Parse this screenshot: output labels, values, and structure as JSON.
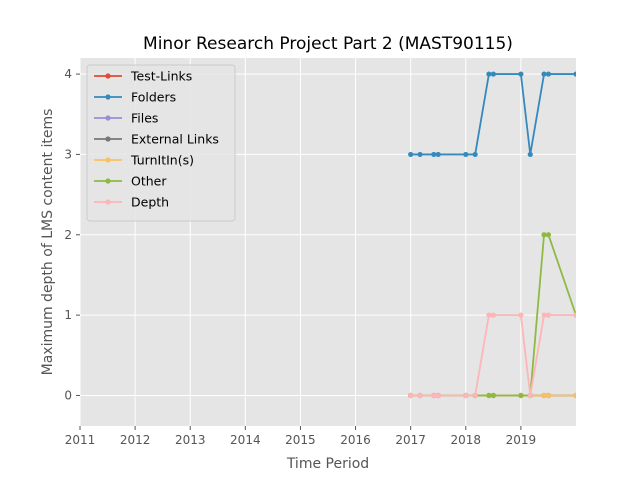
{
  "chart_data": {
    "type": "line",
    "title": "Minor Research Project Part 2 (MAST90115)",
    "xlabel": "Time Period",
    "ylabel": "Maximum depth of LMS content items",
    "xlim": [
      2011,
      2020
    ],
    "ylim": [
      -0.38,
      4.2
    ],
    "xticks": [
      "2011",
      "2012",
      "2013",
      "2014",
      "2015",
      "2016",
      "2017",
      "2018",
      "2019"
    ],
    "xtick_values": [
      2011,
      2012,
      2013,
      2014,
      2015,
      2016,
      2017,
      2018,
      2019
    ],
    "yticks": [
      "0",
      "1",
      "2",
      "3",
      "4"
    ],
    "ytick_values": [
      0,
      1,
      2,
      3,
      4
    ],
    "grid": true,
    "legend_position": "top-left",
    "x": [
      2017.0,
      2017.17,
      2017.42,
      2017.5,
      2018.0,
      2018.17,
      2018.42,
      2018.5,
      2019.0,
      2019.17,
      2019.42,
      2019.5,
      2020.0
    ],
    "series": [
      {
        "name": "Test-Links",
        "color": "#E24A33",
        "values": [
          0,
          0,
          0,
          0,
          0,
          0,
          0,
          0,
          0,
          0,
          0,
          0,
          0
        ]
      },
      {
        "name": "Folders",
        "color": "#348ABD",
        "values": [
          3,
          3,
          3,
          3,
          3,
          3,
          4,
          4,
          4,
          3,
          4,
          4,
          4
        ]
      },
      {
        "name": "Files",
        "color": "#988ED5",
        "values": [
          0,
          0,
          0,
          0,
          0,
          0,
          0,
          0,
          0,
          0,
          0,
          0,
          0
        ]
      },
      {
        "name": "External Links",
        "color": "#777777",
        "values": [
          0,
          0,
          0,
          0,
          0,
          0,
          0,
          0,
          0,
          0,
          0,
          0,
          0
        ]
      },
      {
        "name": "TurnItIn(s)",
        "color": "#FBC15E",
        "values": [
          0,
          0,
          0,
          0,
          0,
          0,
          0,
          0,
          0,
          0,
          0,
          0,
          0
        ]
      },
      {
        "name": "Other",
        "color": "#8EBA42",
        "values": [
          0,
          0,
          0,
          0,
          0,
          0,
          0,
          0,
          0,
          0,
          2,
          2,
          1
        ]
      },
      {
        "name": "Depth",
        "color": "#FFB5B8",
        "values": [
          0,
          0,
          0,
          0,
          0,
          0,
          1,
          1,
          1,
          0,
          1,
          1,
          1
        ]
      }
    ]
  }
}
